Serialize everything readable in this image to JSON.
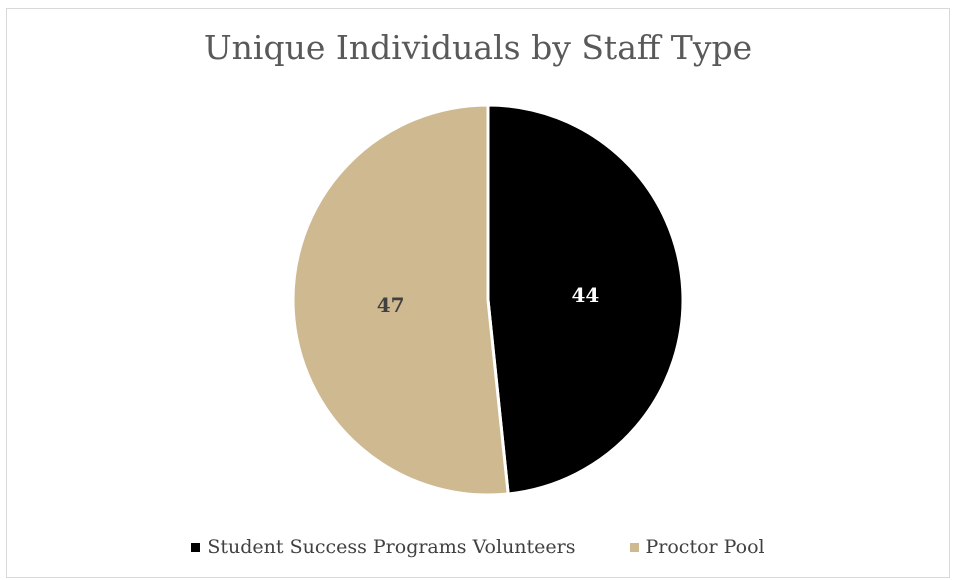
{
  "chart_data": {
    "type": "pie",
    "title": "Unique Individuals by Staff Type",
    "categories": [
      "Student Success Programs Volunteers",
      "Proctor Pool"
    ],
    "values": [
      44,
      47
    ],
    "colors": [
      "#000000",
      "#cfb991"
    ],
    "label_colors": [
      "#ffffff",
      "#404040"
    ],
    "data_labels": [
      "44",
      "47"
    ],
    "legend_position": "bottom"
  }
}
